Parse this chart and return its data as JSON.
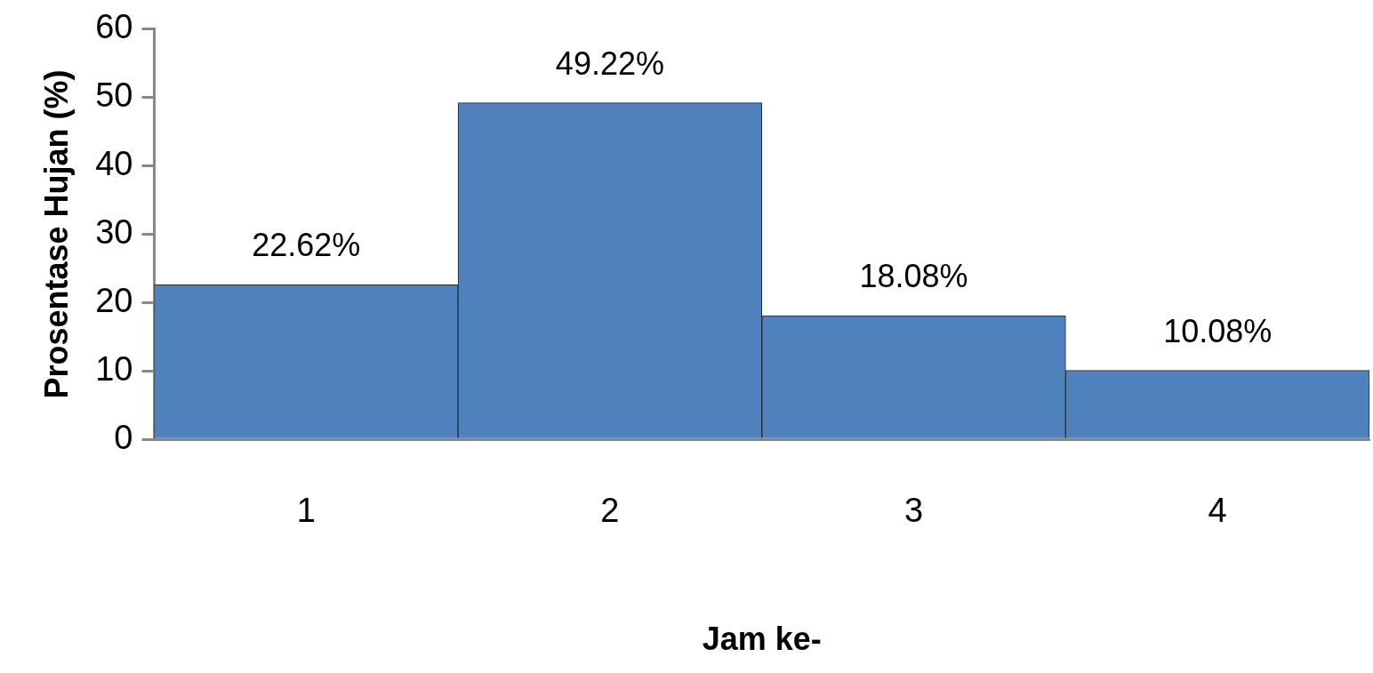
{
  "chart_data": {
    "type": "bar",
    "xlabel": "Jam ke-",
    "ylabel": "Prosentase Hujan (%)",
    "categories": [
      "1",
      "2",
      "3",
      "4"
    ],
    "values": [
      22.62,
      49.22,
      18.08,
      10.08
    ],
    "value_labels": [
      "22.62%",
      "49.22%",
      "18.08%",
      "10.08%"
    ],
    "color": "#4f81bd",
    "ylim": [
      0,
      60
    ],
    "yticks": [
      0,
      10,
      20,
      30,
      40,
      50,
      60
    ],
    "grid": false,
    "legend": false
  }
}
